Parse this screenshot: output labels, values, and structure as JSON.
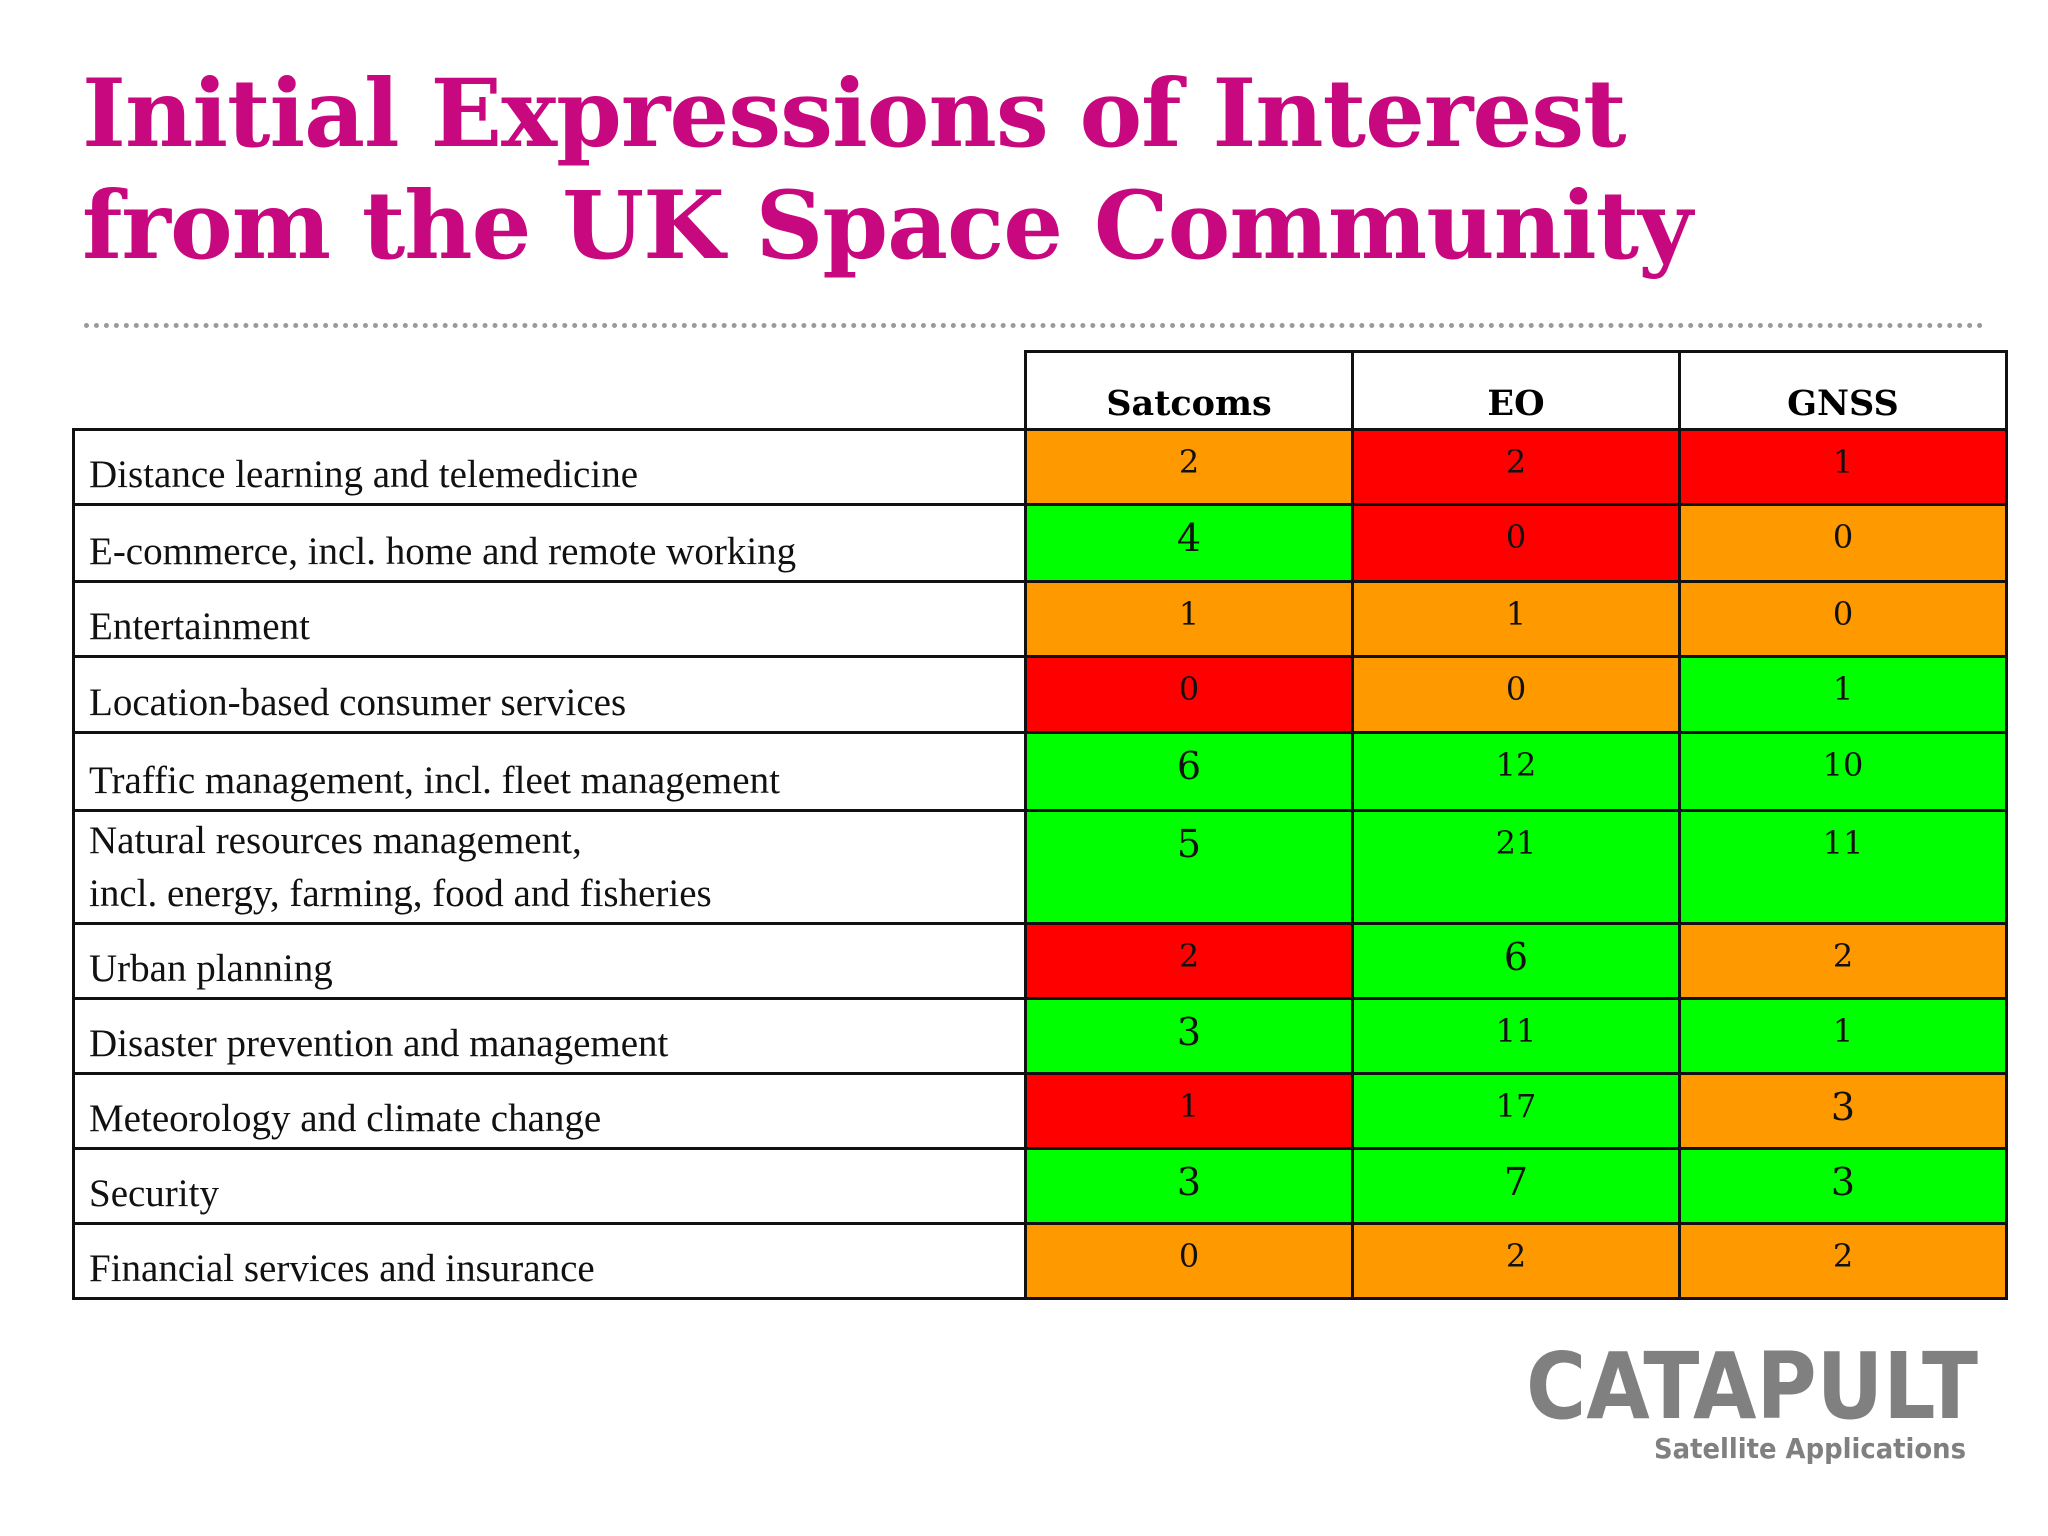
{
  "title": {
    "line1": "Initial Expressions of Interest",
    "line2": "from the UK Space Community"
  },
  "table": {
    "columns": [
      "Satcoms",
      "EO",
      "GNSS"
    ],
    "colors": {
      "green": "#00ff00",
      "orange": "#ff9900",
      "red": "#ff0000"
    },
    "rows": [
      {
        "label_lines": [
          "Distance learning and telemedicine"
        ],
        "cells": [
          {
            "value": "2",
            "color": "orange"
          },
          {
            "value": "2",
            "color": "red"
          },
          {
            "value": "1",
            "color": "red"
          }
        ]
      },
      {
        "label_lines": [
          "E-commerce, incl. home and remote working"
        ],
        "cells": [
          {
            "value": "4",
            "color": "green"
          },
          {
            "value": "0",
            "color": "red"
          },
          {
            "value": "0",
            "color": "orange"
          }
        ]
      },
      {
        "label_lines": [
          "Entertainment"
        ],
        "cells": [
          {
            "value": "1",
            "color": "orange"
          },
          {
            "value": "1",
            "color": "orange"
          },
          {
            "value": "0",
            "color": "orange"
          }
        ]
      },
      {
        "label_lines": [
          "Location-based consumer services"
        ],
        "cells": [
          {
            "value": "0",
            "color": "red"
          },
          {
            "value": "0",
            "color": "orange"
          },
          {
            "value": "1",
            "color": "green"
          }
        ]
      },
      {
        "label_lines": [
          "Traffic management, incl. fleet management"
        ],
        "cells": [
          {
            "value": "6",
            "color": "green"
          },
          {
            "value": "12",
            "color": "green"
          },
          {
            "value": "10",
            "color": "green"
          }
        ]
      },
      {
        "label_lines": [
          "Natural resources management,",
          "incl. energy, farming, food and fisheries"
        ],
        "cells": [
          {
            "value": "5",
            "color": "green"
          },
          {
            "value": "21",
            "color": "green"
          },
          {
            "value": "11",
            "color": "green"
          }
        ]
      },
      {
        "label_lines": [
          "Urban planning"
        ],
        "cells": [
          {
            "value": "2",
            "color": "red"
          },
          {
            "value": "6",
            "color": "green"
          },
          {
            "value": "2",
            "color": "orange"
          }
        ]
      },
      {
        "label_lines": [
          "Disaster prevention and management"
        ],
        "cells": [
          {
            "value": "3",
            "color": "green"
          },
          {
            "value": "11",
            "color": "green"
          },
          {
            "value": "1",
            "color": "green"
          }
        ]
      },
      {
        "label_lines": [
          "Meteorology and climate change"
        ],
        "cells": [
          {
            "value": "1",
            "color": "red"
          },
          {
            "value": "17",
            "color": "green"
          },
          {
            "value": "3",
            "color": "orange"
          }
        ]
      },
      {
        "label_lines": [
          "Security"
        ],
        "cells": [
          {
            "value": "3",
            "color": "green"
          },
          {
            "value": "7",
            "color": "green"
          },
          {
            "value": "3",
            "color": "green"
          }
        ]
      },
      {
        "label_lines": [
          "Financial services and insurance"
        ],
        "cells": [
          {
            "value": "0",
            "color": "orange"
          },
          {
            "value": "2",
            "color": "orange"
          },
          {
            "value": "2",
            "color": "orange"
          }
        ]
      }
    ]
  },
  "logo": {
    "icon": "catapult-logo-icon",
    "wordmark": "CATAPULT",
    "tagline": "Satellite Applications",
    "color": "#808080"
  }
}
